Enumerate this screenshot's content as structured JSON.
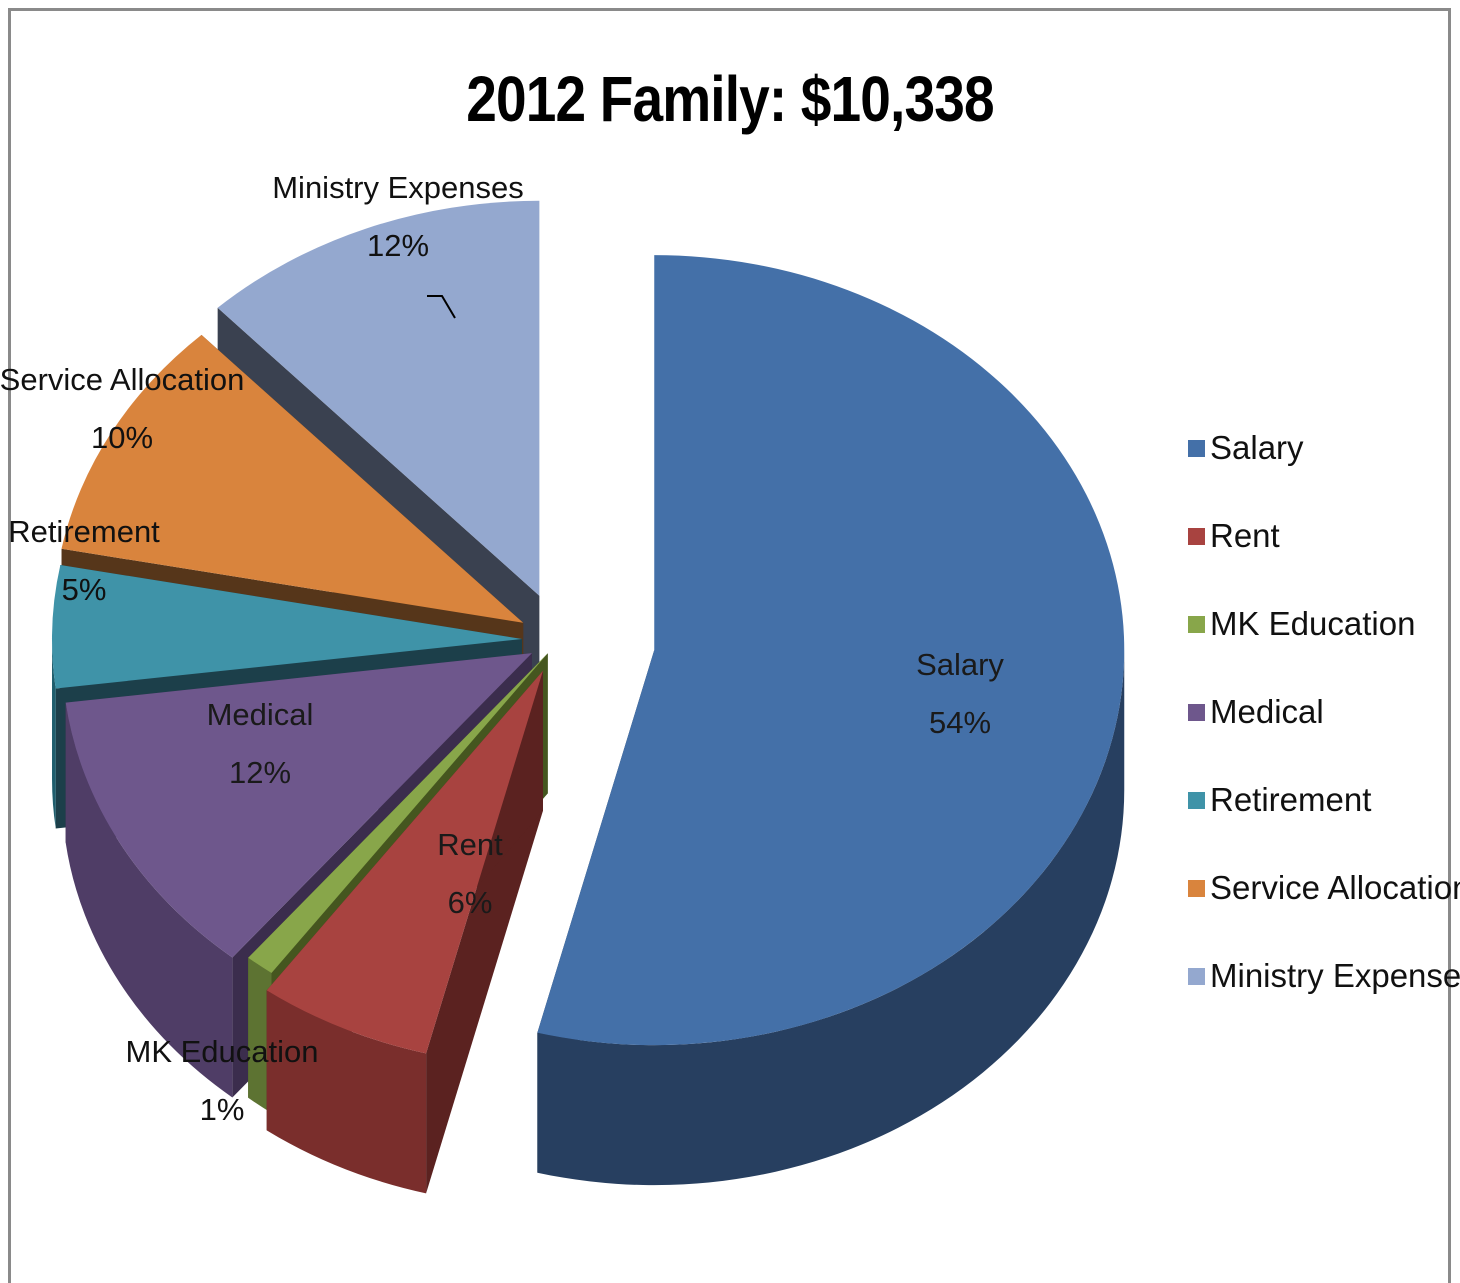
{
  "chart_data": {
    "type": "pie",
    "title": "2012 Family: $10,338",
    "slices": [
      {
        "label": "Salary",
        "value": 54,
        "value_label": "54%",
        "color": "#4470a8",
        "side": "#273f60",
        "inner": "#1b2c45"
      },
      {
        "label": "Rent",
        "value": 6,
        "value_label": "6%",
        "color": "#a84340",
        "side": "#7a2e2c",
        "inner": "#5b2220"
      },
      {
        "label": "MK Education",
        "value": 1,
        "value_label": "1%",
        "color": "#88a64a",
        "side": "#5d7332",
        "inner": "#45561f"
      },
      {
        "label": "Medical",
        "value": 12,
        "value_label": "12%",
        "color": "#6e578c",
        "side": "#4f3d66",
        "inner": "#3b2d4d"
      },
      {
        "label": "Retirement",
        "value": 5,
        "value_label": "5%",
        "color": "#3f93a8",
        "side": "#1f5e6d",
        "inner": "#1c3f4a"
      },
      {
        "label": "Service Allocation",
        "value": 10,
        "value_label": "10%",
        "color": "#d9843d",
        "side": "#8e5322",
        "inner": "#56361a"
      },
      {
        "label": "Ministry Expenses",
        "value": 12,
        "value_label": "12%",
        "color": "#94a8cf",
        "side": "#5a6a8a",
        "inner": "#3a4150"
      }
    ],
    "legend": {
      "position": "right",
      "entries": [
        "Salary",
        "Rent",
        "MK Education",
        "Medical",
        "Retirement",
        "Service Allocation",
        "Ministry Expenses"
      ]
    }
  }
}
